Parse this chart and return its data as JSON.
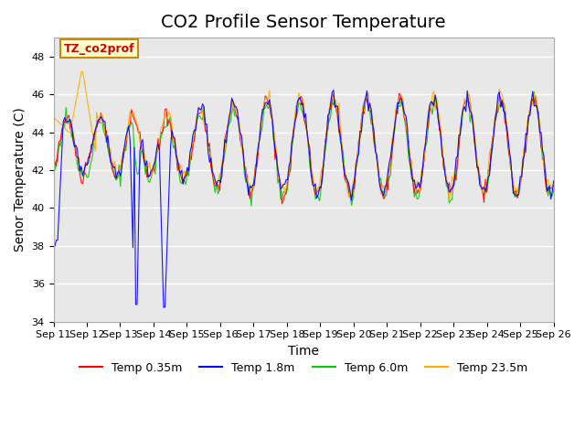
{
  "title": "CO2 Profile Sensor Temperature",
  "xlabel": "Time",
  "ylabel": "Senor Temperature (C)",
  "ylim": [
    34,
    49
  ],
  "xtick_labels": [
    "Sep 11",
    "Sep 12",
    "Sep 13",
    "Sep 14",
    "Sep 15",
    "Sep 16",
    "Sep 17",
    "Sep 18",
    "Sep 19",
    "Sep 20",
    "Sep 21",
    "Sep 22",
    "Sep 23",
    "Sep 24",
    "Sep 25",
    "Sep 26"
  ],
  "ytick_values": [
    34,
    36,
    38,
    40,
    42,
    44,
    46,
    48
  ],
  "annotation_text": "TZ_co2prof",
  "annotation_bbox_facecolor": "#ffffcc",
  "annotation_bbox_edgecolor": "#cc8800",
  "colors": {
    "temp_035": "#ff0000",
    "temp_18": "#0000ff",
    "temp_60": "#00cc00",
    "temp_235": "#ffaa00"
  },
  "legend_labels": [
    "Temp 0.35m",
    "Temp 1.8m",
    "Temp 6.0m",
    "Temp 23.5m"
  ],
  "background_color": "#ffffff",
  "plot_bg_color": "#e8e8e8",
  "grid_color": "#ffffff",
  "title_fontsize": 14,
  "label_fontsize": 10,
  "tick_fontsize": 8
}
